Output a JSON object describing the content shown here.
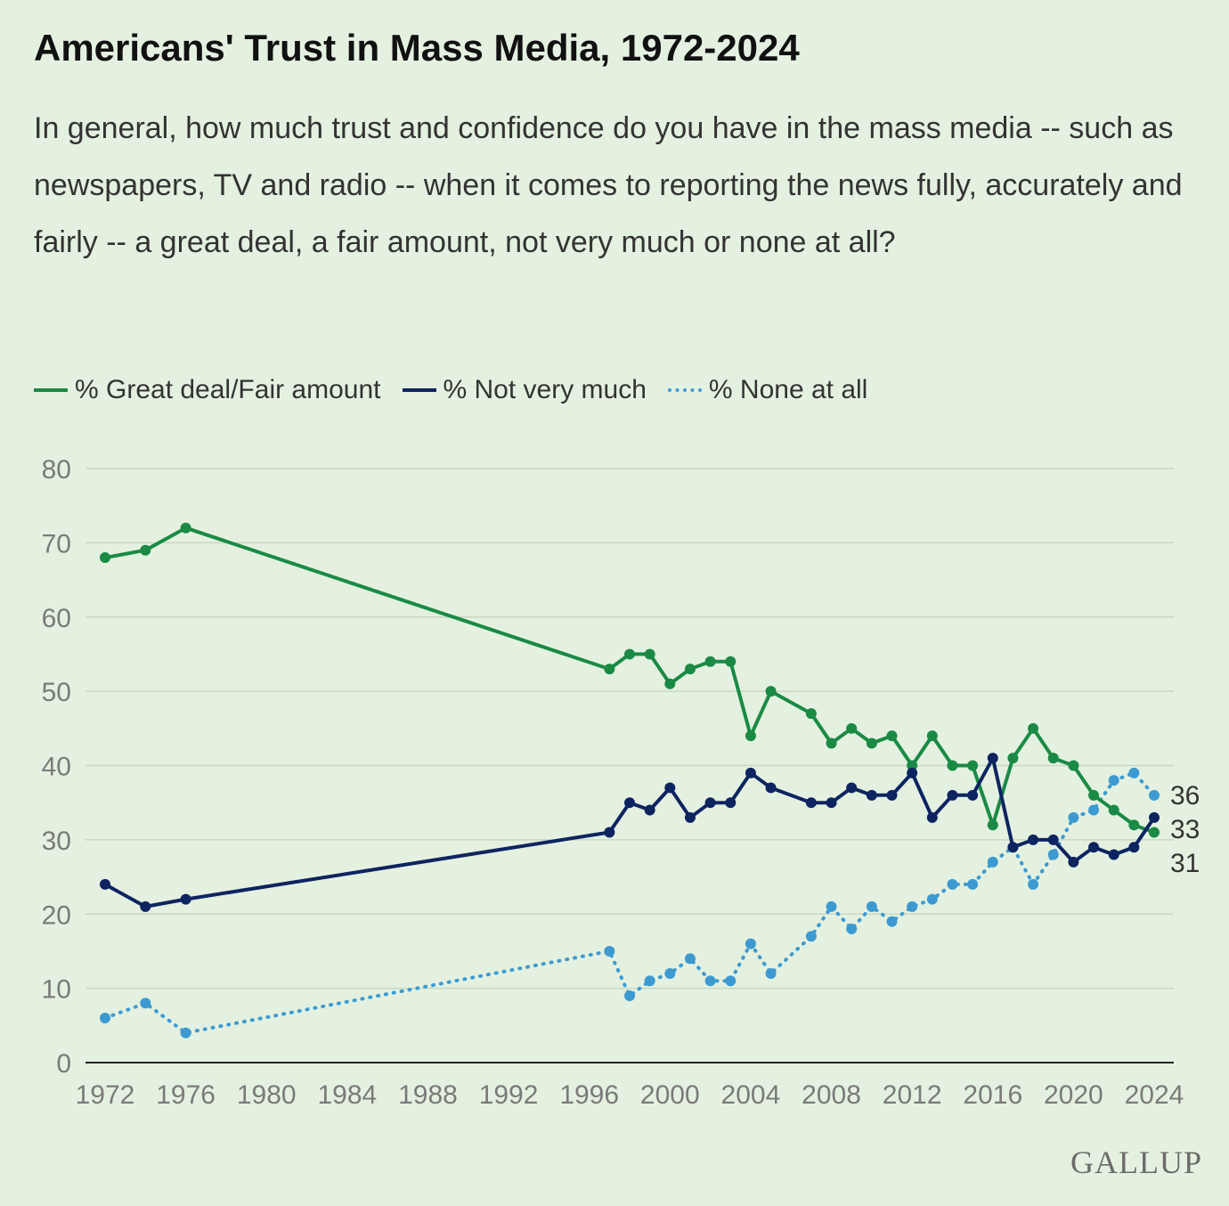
{
  "title": "Americans' Trust in Mass Media, 1972-2024",
  "subtitle": "In general, how much trust and confidence do you have in the mass media -- such as newspapers, TV and radio -- when it comes to reporting the news fully, accurately and fairly -- a great deal, a fair amount, not very much or none at all?",
  "legend": [
    {
      "label": "% Great deal/Fair amount",
      "style": "solid",
      "color": "#1a8a45"
    },
    {
      "label": "% Not very much",
      "style": "solid",
      "color": "#0e2461"
    },
    {
      "label": "% None at all",
      "style": "dotted",
      "color": "#3d9ad1"
    }
  ],
  "logo": "GALLUP",
  "chart_data": {
    "type": "line",
    "xlabel": "",
    "ylabel": "",
    "xlim": [
      1972,
      2024
    ],
    "ylim": [
      0,
      80
    ],
    "x_ticks": [
      1972,
      1976,
      1980,
      1984,
      1988,
      1992,
      1996,
      2000,
      2004,
      2008,
      2012,
      2016,
      2020,
      2024
    ],
    "y_ticks": [
      0,
      10,
      20,
      30,
      40,
      50,
      60,
      70,
      80
    ],
    "grid": true,
    "legend_position": "top-left",
    "series": [
      {
        "name": "% Great deal/Fair amount",
        "style": "solid",
        "color": "#1a8a45",
        "x": [
          1972,
          1974,
          1976,
          1997,
          1998,
          1999,
          2000,
          2001,
          2002,
          2003,
          2004,
          2005,
          2007,
          2008,
          2009,
          2010,
          2011,
          2012,
          2013,
          2014,
          2015,
          2016,
          2017,
          2018,
          2019,
          2020,
          2021,
          2022,
          2023,
          2024
        ],
        "y": [
          68,
          69,
          72,
          53,
          55,
          55,
          51,
          53,
          54,
          54,
          44,
          50,
          47,
          43,
          45,
          43,
          44,
          40,
          44,
          40,
          40,
          32,
          41,
          45,
          41,
          40,
          36,
          34,
          32,
          31
        ],
        "end_label": "31"
      },
      {
        "name": "% Not very much",
        "style": "solid",
        "color": "#0e2461",
        "x": [
          1972,
          1974,
          1976,
          1997,
          1998,
          1999,
          2000,
          2001,
          2002,
          2003,
          2004,
          2005,
          2007,
          2008,
          2009,
          2010,
          2011,
          2012,
          2013,
          2014,
          2015,
          2016,
          2017,
          2018,
          2019,
          2020,
          2021,
          2022,
          2023,
          2024
        ],
        "y": [
          24,
          21,
          22,
          31,
          35,
          34,
          37,
          33,
          35,
          35,
          39,
          37,
          35,
          35,
          37,
          36,
          36,
          39,
          33,
          36,
          36,
          41,
          29,
          30,
          30,
          27,
          29,
          28,
          29,
          33
        ],
        "end_label": "33"
      },
      {
        "name": "% None at all",
        "style": "dotted",
        "color": "#3d9ad1",
        "x": [
          1972,
          1974,
          1976,
          1997,
          1998,
          1999,
          2000,
          2001,
          2002,
          2003,
          2004,
          2005,
          2007,
          2008,
          2009,
          2010,
          2011,
          2012,
          2013,
          2014,
          2015,
          2016,
          2017,
          2018,
          2019,
          2020,
          2021,
          2022,
          2023,
          2024
        ],
        "y": [
          6,
          8,
          4,
          15,
          9,
          11,
          12,
          14,
          11,
          11,
          16,
          12,
          17,
          21,
          18,
          21,
          19,
          21,
          22,
          24,
          24,
          27,
          29,
          24,
          28,
          33,
          34,
          38,
          39,
          36
        ],
        "end_label": "36"
      }
    ]
  }
}
